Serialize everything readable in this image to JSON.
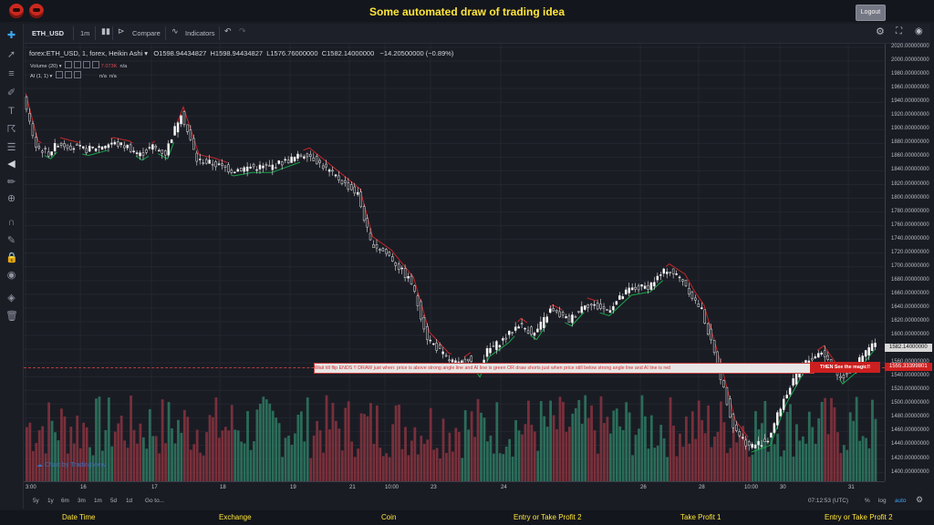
{
  "header": {
    "title": "Some automated draw of trading idea",
    "logout_label": "Logout"
  },
  "toolbar": {
    "symbol": "ETH_USD",
    "interval": "1m",
    "compare_label": "Compare",
    "indicators_label": "Indicators"
  },
  "legend": {
    "main": "forex:ETH_USD, 1, forex, Heikin Ashi",
    "open": "O1598.94434827",
    "high": "H1598.94434827",
    "low": "L1576.76000000",
    "close": "C1582.14000000",
    "change": "−14.20500000 (−0.89%)",
    "volume_label": "Volume (20)",
    "volume_value": "7.073K",
    "volume_na": "n/a",
    "ai_label": "AI (1, 1)",
    "ai_na1": "n/a",
    "ai_na2": "n/a"
  },
  "price_axis": {
    "ticks": [
      "2020.00000000",
      "2000.00000000",
      "1980.00000000",
      "1960.00000000",
      "1940.00000000",
      "1920.00000000",
      "1900.00000000",
      "1880.00000000",
      "1860.00000000",
      "1840.00000000",
      "1820.00000000",
      "1800.00000000",
      "1780.00000000",
      "1760.00000000",
      "1740.00000000",
      "1720.00000000",
      "1700.00000000",
      "1680.00000000",
      "1660.00000000",
      "1640.00000000",
      "1620.00000000",
      "1600.00000000",
      "1580.00000000",
      "1560.00000000",
      "1540.00000000",
      "1520.00000000",
      "1500.00000000",
      "1480.00000000",
      "1460.00000000",
      "1440.00000000",
      "1420.00000000",
      "1400.00000000"
    ],
    "current_price": "1582.14000000",
    "marked_price": "1555.33399801"
  },
  "time_axis": {
    "labels": [
      "3:00",
      "16",
      "17",
      "18",
      "19",
      "21",
      "10:00",
      "23",
      "24",
      "26",
      "28",
      "10:00",
      "30",
      "31"
    ]
  },
  "annotation": {
    "text": "Wait till flip ENDS !!    DRAW just when:  price is above strong angle line and AI line is green          OR          draw shorts just when price still below strong angle line and AI line is red",
    "callout": "THEN See the magic!!"
  },
  "range_bar": {
    "ranges": [
      "5y",
      "1y",
      "6m",
      "3m",
      "1m",
      "5d",
      "1d"
    ],
    "goto_label": "Go to...",
    "clock": "07:12:53 (UTC)",
    "percent_label": "%",
    "log_label": "log",
    "auto_label": "auto"
  },
  "watermark": "Chart by TradingView",
  "footer": {
    "items": [
      "Date Time",
      "Exchange",
      "Coin",
      "Entry or Take Profit 2",
      "Take Profit 1",
      "Entry or Take Profit 2"
    ]
  },
  "colors": {
    "accent": "#ffe63a",
    "bull_volume": "#2f7a63",
    "bear_volume": "#8a3440",
    "ai_green": "#19a64a",
    "ai_red": "#c62828",
    "candle": "#e6e6e6"
  },
  "chart_data": {
    "type": "candlestick",
    "ylim": [
      1400,
      2020
    ],
    "close_path_x_index": [
      0,
      8,
      16,
      22,
      30,
      40,
      56,
      66,
      74,
      82,
      90,
      100,
      110,
      120,
      132,
      144,
      156,
      168,
      180,
      196,
      212,
      220,
      232,
      246,
      256,
      268,
      276,
      282,
      288,
      294,
      300,
      306,
      314,
      324,
      334,
      346,
      356,
      370,
      384,
      396,
      408,
      418,
      424,
      430,
      440,
      450,
      460,
      472,
      482,
      494,
      506,
      518,
      528,
      538
    ],
    "close_path_y": [
      1950,
      1880,
      1870,
      1885,
      1880,
      1875,
      1885,
      1880,
      1868,
      1880,
      1870,
      1930,
      1860,
      1855,
      1845,
      1850,
      1850,
      1860,
      1870,
      1840,
      1810,
      1740,
      1720,
      1680,
      1600,
      1570,
      1560,
      1570,
      1550,
      1580,
      1590,
      1600,
      1620,
      1605,
      1640,
      1625,
      1650,
      1640,
      1670,
      1675,
      1700,
      1685,
      1660,
      1640,
      1560,
      1470,
      1440,
      1450,
      1510,
      1560,
      1580,
      1540,
      1560,
      1590
    ]
  }
}
